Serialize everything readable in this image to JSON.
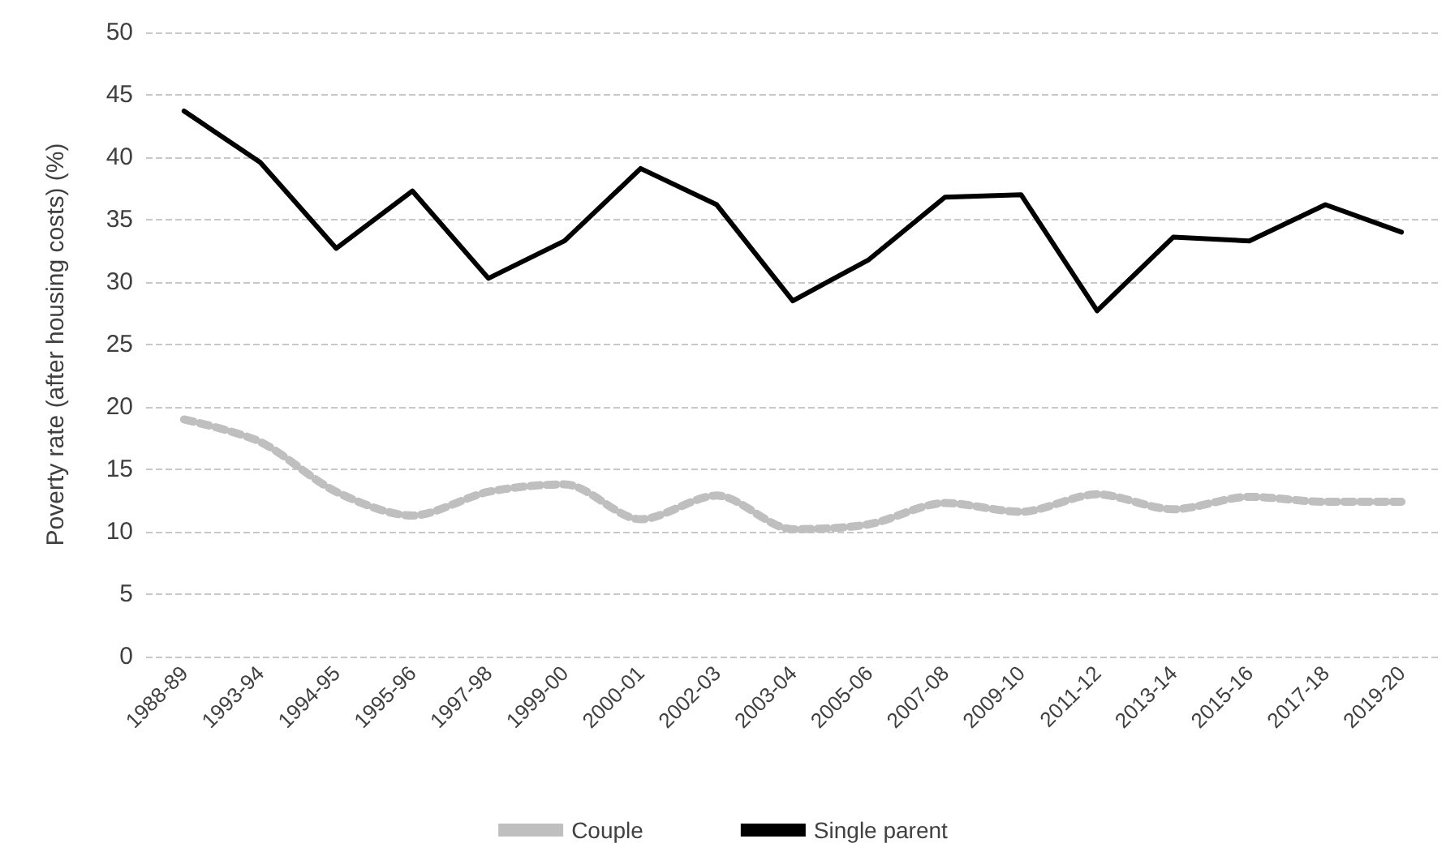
{
  "chart_data": {
    "type": "line",
    "ylabel": "Poverty rate (after housing costs) (%)",
    "categories": [
      "1988-89",
      "1993-94",
      "1994-95",
      "1995-96",
      "1997-98",
      "1999-00",
      "2000-01",
      "2002-03",
      "2003-04",
      "2005-06",
      "2007-08",
      "2009-10",
      "2011-12",
      "2013-14",
      "2015-16",
      "2017-18",
      "2019-20"
    ],
    "series": [
      {
        "name": "Couple",
        "color": "#bfbfbf",
        "line_style": "dashed",
        "values": [
          19,
          17.2,
          13.2,
          11.3,
          13.2,
          13.8,
          11.0,
          12.9,
          10.2,
          10.6,
          12.3,
          11.6,
          13.0,
          11.8,
          12.8,
          12.4,
          12.4
        ]
      },
      {
        "name": "Single parent",
        "color": "#000000",
        "line_style": "solid",
        "values": [
          43.7,
          39.6,
          32.7,
          37.3,
          30.3,
          33.3,
          39.1,
          36.2,
          28.5,
          31.8,
          36.8,
          37.0,
          27.7,
          33.6,
          33.3,
          36.2,
          34.0
        ]
      }
    ],
    "ylim": [
      0,
      50
    ],
    "yticks": [
      0,
      5,
      10,
      15,
      20,
      25,
      30,
      35,
      40,
      45,
      50
    ],
    "grid": "y",
    "legend": "bottom",
    "marker": "none"
  }
}
